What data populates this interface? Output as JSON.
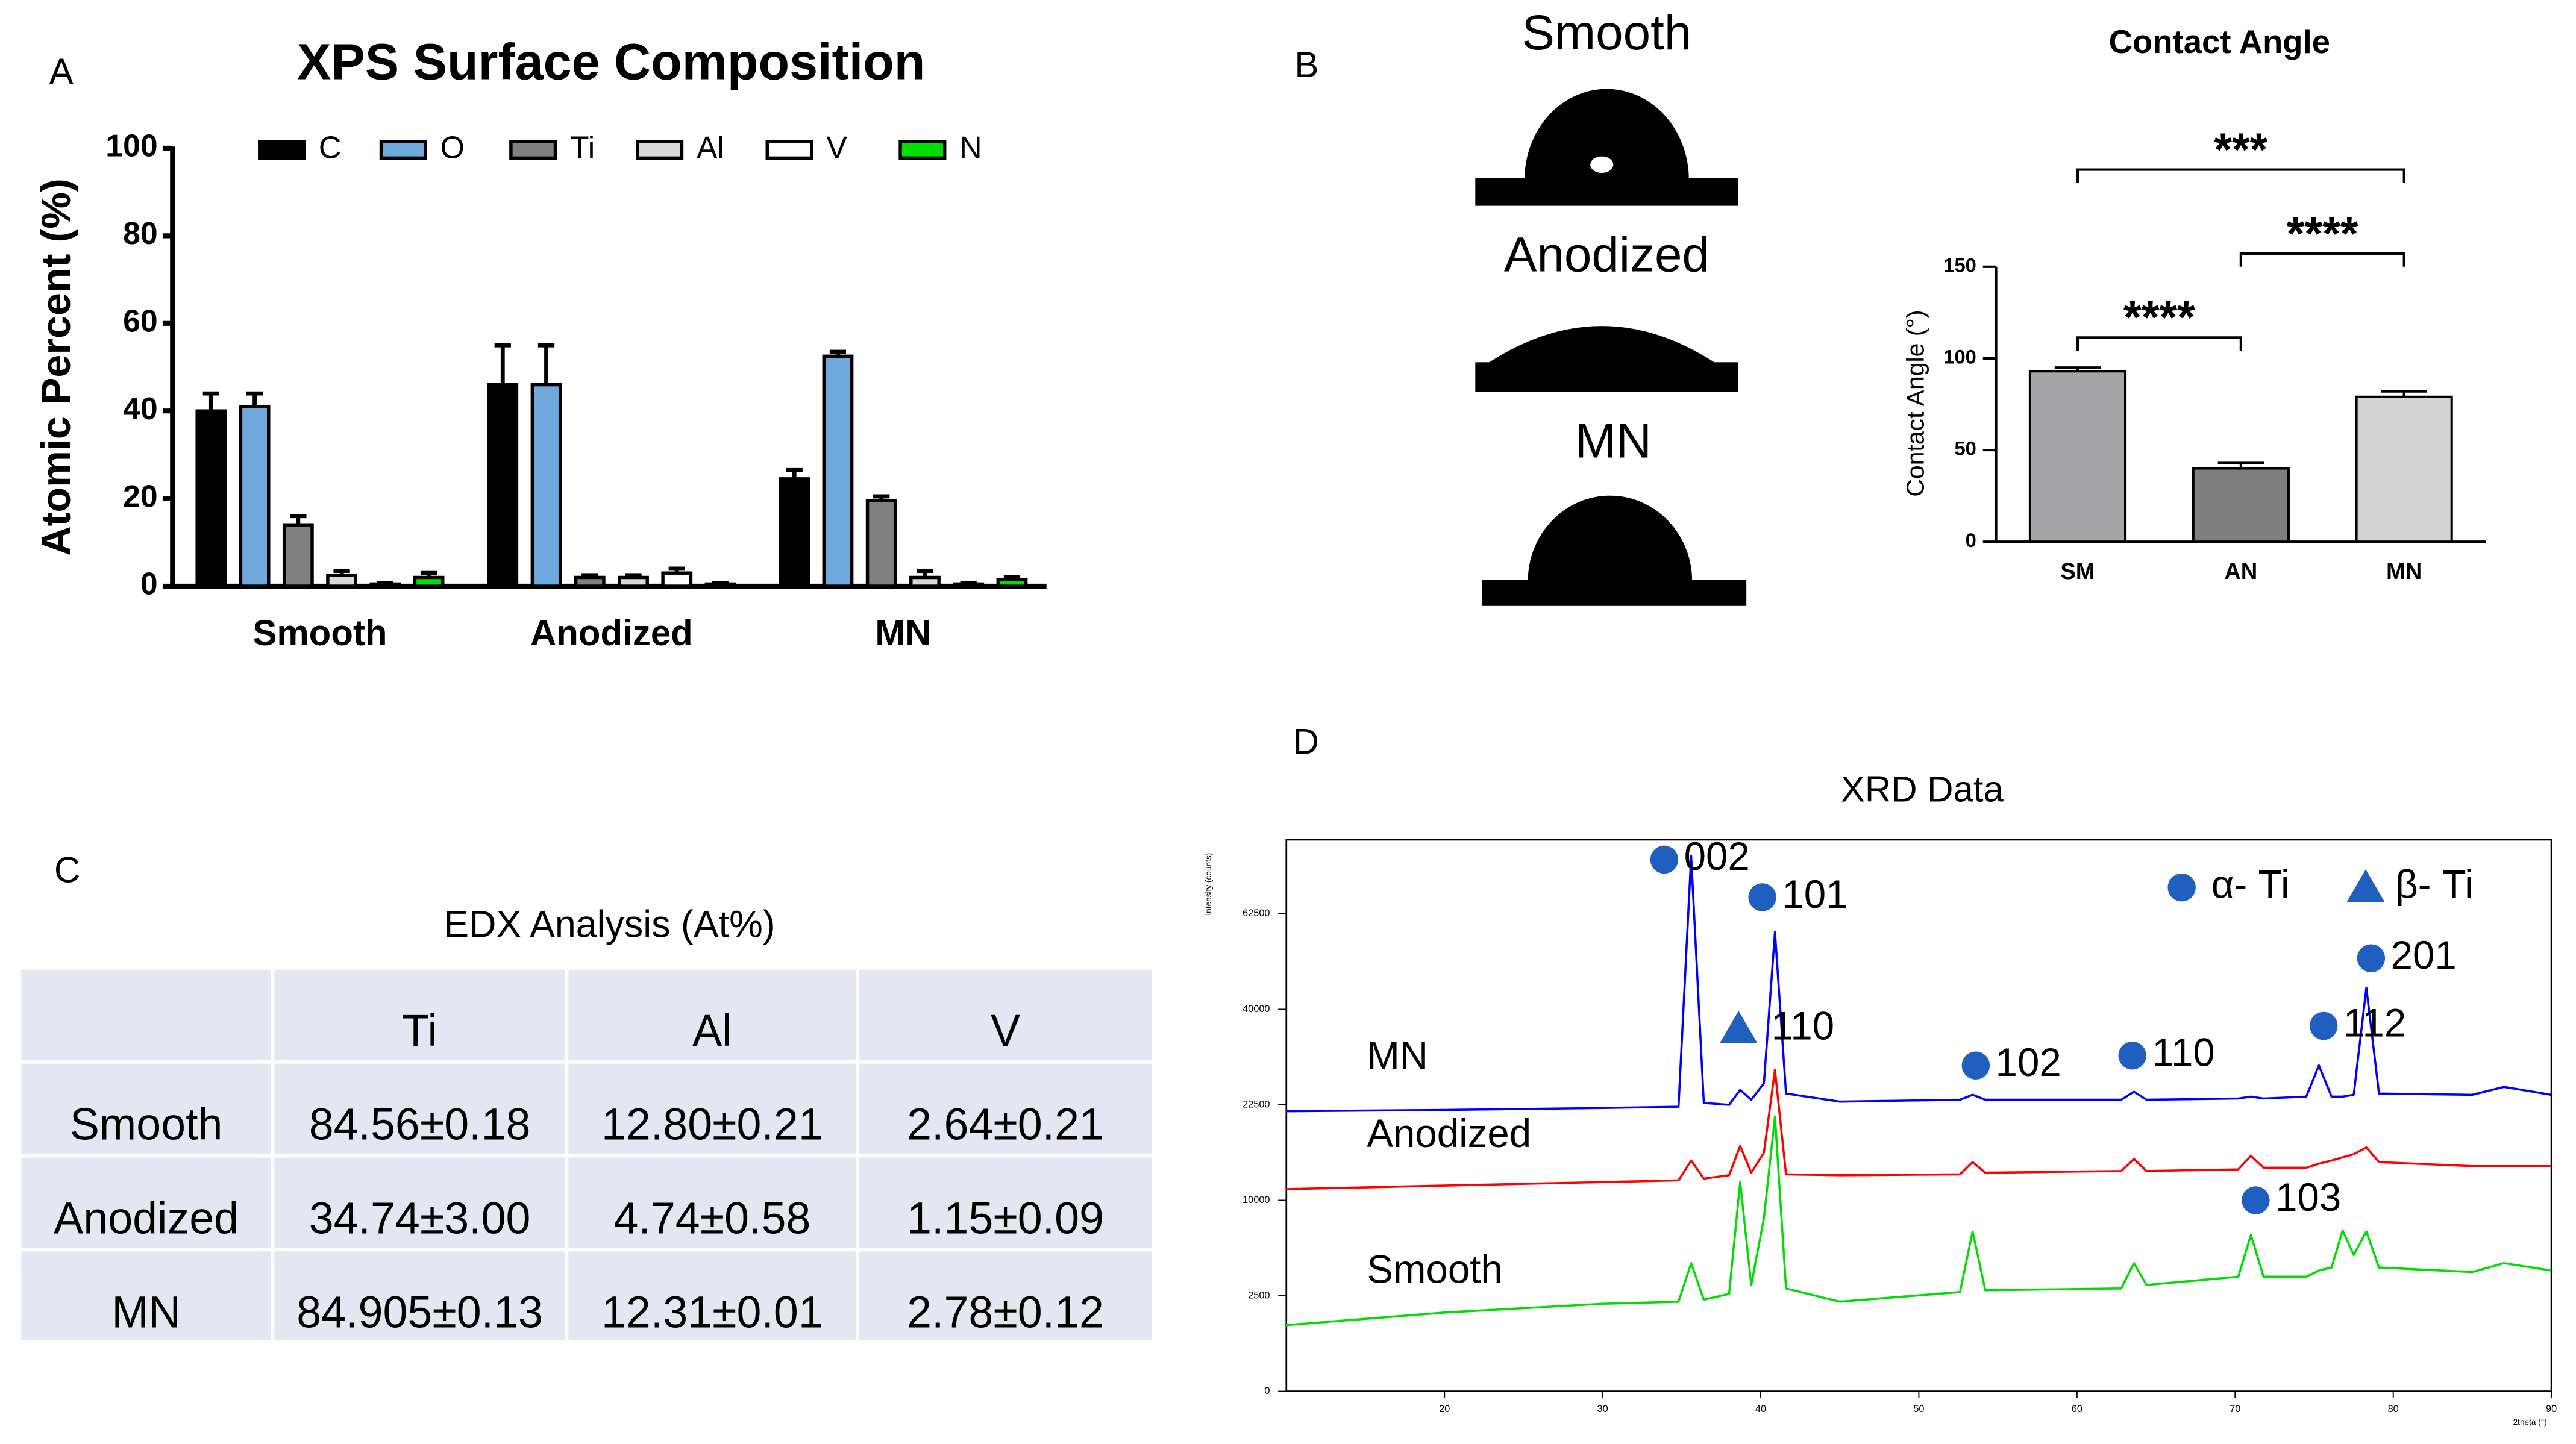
{
  "panel_labels": [
    "A",
    "B",
    "C",
    "D"
  ],
  "chart_data": [
    {
      "type": "bar",
      "title": "XPS Surface Composition",
      "ylabel": "Atomic Percent (%)",
      "categories": [
        "Smooth",
        "Anodized",
        "MN"
      ],
      "series": [
        {
          "name": "C",
          "color": "#000000",
          "values": [
            40,
            46,
            24.5
          ],
          "errors": [
            4,
            9,
            2
          ]
        },
        {
          "name": "O",
          "color": "#6fa8dc",
          "values": [
            41,
            46,
            52.5
          ],
          "errors": [
            3,
            9,
            1
          ]
        },
        {
          "name": "Ti",
          "color": "#808080",
          "values": [
            14,
            2,
            19.5
          ],
          "errors": [
            2,
            0.5,
            1
          ]
        },
        {
          "name": "Al",
          "color": "#d9d9d9",
          "values": [
            2.5,
            2,
            2
          ],
          "errors": [
            1,
            0.5,
            1.5
          ]
        },
        {
          "name": "V",
          "color": "#ffffff",
          "values": [
            0.5,
            3,
            0.5
          ],
          "errors": [
            0.2,
            1,
            0.2
          ]
        },
        {
          "name": "N",
          "color": "#00e000",
          "values": [
            2,
            0.5,
            1.5
          ],
          "errors": [
            1,
            0.2,
            0.5
          ]
        }
      ],
      "ylim": [
        0,
        100
      ],
      "yticks": [
        0,
        20,
        40,
        60,
        80,
        100
      ],
      "legend": "top"
    },
    {
      "type": "bar",
      "title": "Contact Angle",
      "ylabel": "Contact Angle (°)",
      "categories": [
        "SM",
        "AN",
        "MN"
      ],
      "values": [
        93,
        40,
        79
      ],
      "errors": [
        2,
        3,
        3
      ],
      "colors": [
        "#a5a5a8",
        "#7f7f7f",
        "#d3d3d3"
      ],
      "ylim": [
        0,
        150
      ],
      "yticks": [
        0,
        50,
        100,
        150
      ],
      "annotations": [
        {
          "text": "***",
          "from": 0,
          "to": 2
        },
        {
          "text": "****",
          "from": 1,
          "to": 2
        },
        {
          "text": "****",
          "from": 0,
          "to": 1
        }
      ]
    },
    {
      "type": "line",
      "title": "XRD Data",
      "xlabel": "2theta (°)",
      "ylabel": "Intensity (counts)",
      "x": [
        10,
        20,
        30,
        34.8,
        35.6,
        36.4,
        38,
        38.7,
        39.4,
        40.2,
        40.9,
        41.6,
        45,
        52.6,
        53.4,
        54.2,
        62.8,
        63.6,
        64.4,
        70.2,
        71,
        71.8,
        74.5,
        75.3,
        76.1,
        76.8,
        77.5,
        78.3,
        79.1,
        85,
        87,
        90
      ],
      "series": [
        {
          "name": "MN",
          "color": "#0000ff",
          "values": [
            21500,
            21700,
            22000,
            22200,
            78500,
            22800,
            22500,
            24900,
            23300,
            26000,
            57800,
            24300,
            23000,
            23300,
            24100,
            23300,
            23300,
            24600,
            23300,
            23500,
            23800,
            23500,
            23800,
            29100,
            23800,
            23800,
            24100,
            44600,
            24300,
            24100,
            25400,
            24100
          ]
        },
        {
          "name": "Anodized",
          "color": "#ff0000",
          "values": [
            11200,
            11600,
            12000,
            12200,
            14600,
            12400,
            12800,
            16500,
            13100,
            15600,
            28300,
            12900,
            12800,
            12900,
            14400,
            13100,
            13300,
            14800,
            13300,
            13500,
            15200,
            13700,
            13700,
            14200,
            14600,
            15000,
            15400,
            16300,
            14400,
            13900,
            13900,
            13900
          ]
        },
        {
          "name": "Smooth",
          "color": "#00dd00",
          "values": [
            1200,
            1700,
            2100,
            2200,
            4500,
            2300,
            2600,
            12000,
            3100,
            8200,
            20700,
            2900,
            2200,
            2700,
            7000,
            2800,
            2900,
            4500,
            3100,
            3600,
            6700,
            3600,
            3600,
            4000,
            4200,
            7100,
            5100,
            7000,
            4200,
            3900,
            4500,
            4000
          ]
        }
      ],
      "xlim": [
        10,
        90
      ],
      "xticks": [
        20,
        30,
        40,
        50,
        60,
        70,
        80,
        90
      ],
      "ylim": [
        0,
        83400
      ],
      "yticks": [
        0,
        2500,
        10000,
        22500,
        40000,
        62500
      ],
      "yscale": "sqrt",
      "marker_color": "#1f5fbf",
      "phases": [
        {
          "name": "α- Ti",
          "marker": "circle"
        },
        {
          "name": "β- Ti",
          "marker": "triangle"
        }
      ],
      "annotations": [
        {
          "text": "002",
          "marker": "circle",
          "x": 33.9,
          "y": 77500
        },
        {
          "text": "101",
          "marker": "circle",
          "x": 40.1,
          "y": 66900
        },
        {
          "text": "110",
          "marker": "triangle",
          "x": 38.6,
          "y": 36000
        },
        {
          "text": "102",
          "marker": "circle",
          "x": 53.6,
          "y": 29100
        },
        {
          "text": "110",
          "marker": "circle",
          "x": 63.5,
          "y": 30900
        },
        {
          "text": "201",
          "marker": "circle",
          "x": 78.6,
          "y": 51400
        },
        {
          "text": "112",
          "marker": "circle",
          "x": 75.6,
          "y": 36600
        },
        {
          "text": "103",
          "marker": "circle",
          "x": 71.3,
          "y": 10000
        }
      ]
    }
  ],
  "droplets": {
    "labels": [
      "Smooth",
      "Anodized",
      "MN"
    ]
  },
  "table": {
    "title": "EDX Analysis (At%)",
    "columns": [
      "Ti",
      "Al",
      "V"
    ],
    "rows": [
      [
        "Smooth",
        "84.56±0.18",
        "12.80±0.21",
        "2.64±0.21"
      ],
      [
        "Anodized",
        "34.74±3.00",
        "4.74±0.58",
        "1.15±0.09"
      ],
      [
        "MN",
        "84.905±0.13",
        "12.31±0.01",
        "2.78±0.12"
      ]
    ]
  }
}
